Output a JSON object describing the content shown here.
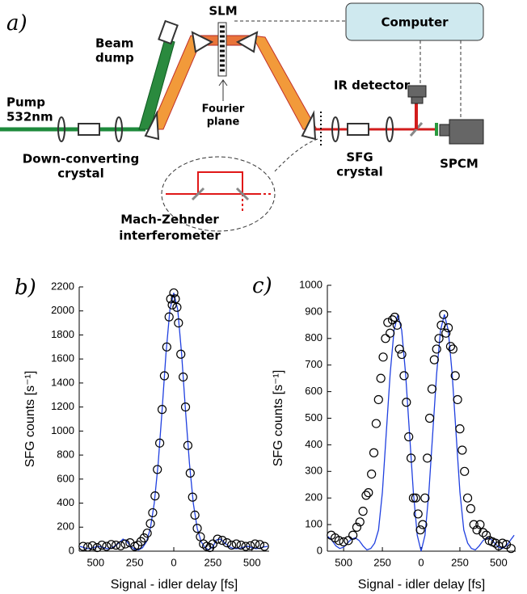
{
  "diagram": {
    "panel_label": "a)",
    "computer": "Computer",
    "slm": "SLM",
    "beam_dump": [
      "Beam",
      "dump"
    ],
    "fourier_plane": [
      "Fourier",
      "plane"
    ],
    "ir_detector": "IR detector",
    "pump": [
      "Pump",
      "532nm"
    ],
    "down_converting_crystal": [
      "Down-converting",
      "crystal"
    ],
    "sfg_crystal": [
      "SFG",
      "crystal"
    ],
    "spcm": "SPCM",
    "mach_zehnder": [
      "Mach-Zehnder",
      "interferometer"
    ]
  },
  "chart_data": [
    {
      "type": "scatter",
      "panel_label": "b)",
      "xlabel": "Signal - idler delay [fs]",
      "ylabel": "SFG counts [s⁻¹]",
      "xlim": [
        -605,
        610
      ],
      "ylim": [
        0,
        2200
      ],
      "xticks": [
        {
          "value": -500,
          "label": "500"
        },
        {
          "value": -250,
          "label": "250"
        },
        0,
        250,
        500
      ],
      "yticks": [
        0,
        200,
        400,
        600,
        800,
        1000,
        1200,
        1400,
        1600,
        1800,
        2000,
        2200
      ],
      "scatter": {
        "color": "#000000",
        "x": [
          -580,
          -550,
          -520,
          -490,
          -460,
          -430,
          -400,
          -370,
          -340,
          -310,
          -280,
          -250,
          -230,
          -210,
          -190,
          -170,
          -150,
          -135,
          -120,
          -105,
          -90,
          -75,
          -60,
          -45,
          -30,
          -20,
          -10,
          0,
          10,
          20,
          30,
          45,
          60,
          75,
          90,
          105,
          120,
          135,
          150,
          170,
          190,
          210,
          230,
          250,
          280,
          310,
          340,
          370,
          400,
          430,
          460,
          490,
          520,
          550,
          580
        ],
        "y": [
          40,
          35,
          45,
          30,
          50,
          40,
          55,
          50,
          45,
          60,
          70,
          40,
          50,
          80,
          110,
          150,
          230,
          320,
          460,
          680,
          900,
          1180,
          1460,
          1700,
          1950,
          2100,
          2050,
          2150,
          2100,
          2030,
          1900,
          1640,
          1450,
          1200,
          880,
          650,
          450,
          300,
          190,
          120,
          60,
          40,
          30,
          60,
          100,
          90,
          70,
          50,
          60,
          50,
          40,
          45,
          60,
          55,
          40
        ]
      },
      "line": {
        "color": "#2040e0",
        "x": [
          -600,
          -575,
          -550,
          -525,
          -500,
          -475,
          -450,
          -425,
          -400,
          -375,
          -350,
          -325,
          -300,
          -275,
          -250,
          -225,
          -200,
          -175,
          -150,
          -125,
          -100,
          -75,
          -50,
          -25,
          0,
          25,
          50,
          75,
          100,
          125,
          150,
          175,
          200,
          225,
          250,
          275,
          300,
          325,
          350,
          375,
          400,
          425,
          450,
          475,
          500,
          525,
          550,
          575,
          600
        ],
        "y": [
          40,
          30,
          20,
          25,
          35,
          40,
          30,
          20,
          25,
          45,
          70,
          100,
          80,
          40,
          15,
          10,
          28,
          78,
          189,
          397,
          729,
          1170,
          1641,
          2010,
          2150,
          2010,
          1641,
          1170,
          729,
          397,
          189,
          78,
          28,
          10,
          40,
          95,
          100,
          70,
          40,
          25,
          20,
          25,
          35,
          40,
          30,
          20,
          25,
          35,
          40
        ]
      }
    },
    {
      "type": "scatter",
      "panel_label": "c)",
      "xlabel": "Signal - idler delay [fs]",
      "ylabel": "SFG counts [s⁻¹]",
      "xlim": [
        -605,
        610
      ],
      "ylim": [
        0,
        1000
      ],
      "xticks": [
        {
          "value": -500,
          "label": "500"
        },
        {
          "value": -250,
          "label": "250"
        },
        0,
        250,
        500
      ],
      "yticks": [
        0,
        100,
        200,
        300,
        400,
        500,
        600,
        700,
        800,
        900,
        1000
      ],
      "scatter": {
        "color": "#000000",
        "x": [
          -580,
          -555,
          -530,
          -500,
          -470,
          -440,
          -415,
          -395,
          -375,
          -355,
          -340,
          -320,
          -305,
          -290,
          -275,
          -260,
          -245,
          -230,
          -215,
          -200,
          -185,
          -170,
          -155,
          -140,
          -125,
          -110,
          -95,
          -80,
          -65,
          -50,
          -35,
          -20,
          -5,
          10,
          25,
          40,
          55,
          70,
          85,
          100,
          115,
          130,
          145,
          160,
          175,
          190,
          205,
          220,
          235,
          250,
          265,
          280,
          300,
          320,
          340,
          360,
          380,
          400,
          420,
          440,
          460,
          480,
          500,
          525,
          550,
          580
        ],
        "y": [
          60,
          50,
          40,
          35,
          40,
          60,
          90,
          110,
          150,
          210,
          220,
          290,
          370,
          480,
          570,
          650,
          730,
          800,
          860,
          820,
          870,
          880,
          850,
          760,
          740,
          660,
          560,
          430,
          350,
          200,
          200,
          140,
          80,
          100,
          200,
          350,
          500,
          610,
          720,
          760,
          800,
          850,
          890,
          820,
          840,
          770,
          760,
          660,
          570,
          460,
          380,
          300,
          200,
          160,
          100,
          80,
          100,
          70,
          60,
          40,
          35,
          30,
          20,
          30,
          25,
          10
        ]
      },
      "line": {
        "color": "#2040e0",
        "x": [
          -600,
          -575,
          -550,
          -525,
          -500,
          -475,
          -450,
          -425,
          -400,
          -375,
          -350,
          -325,
          -300,
          -275,
          -250,
          -225,
          -200,
          -175,
          -150,
          -125,
          -100,
          -75,
          -50,
          -25,
          0,
          25,
          50,
          75,
          100,
          125,
          150,
          175,
          200,
          225,
          250,
          275,
          300,
          325,
          350,
          375,
          400,
          425,
          450,
          475,
          500,
          525,
          550,
          575,
          600
        ],
        "y": [
          55,
          40,
          20,
          10,
          15,
          30,
          45,
          50,
          40,
          20,
          5,
          10,
          30,
          80,
          222,
          445,
          667,
          830,
          890,
          830,
          667,
          445,
          222,
          60,
          0,
          60,
          222,
          445,
          667,
          830,
          890,
          830,
          667,
          445,
          222,
          80,
          30,
          10,
          5,
          20,
          40,
          50,
          45,
          30,
          15,
          10,
          20,
          40,
          60
        ]
      }
    }
  ]
}
